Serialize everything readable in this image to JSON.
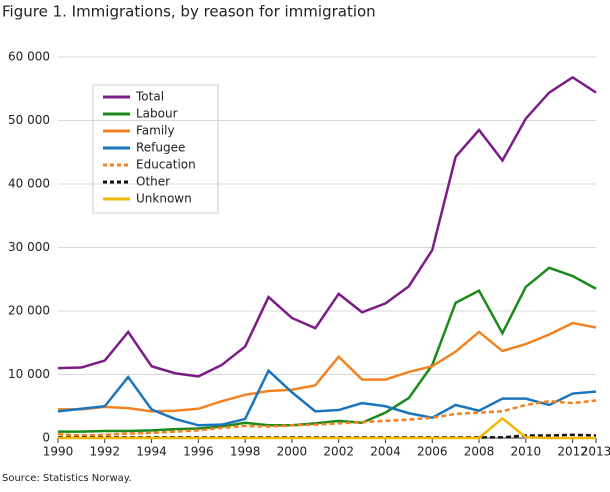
{
  "chart_data": {
    "type": "line",
    "title": "Figure 1. Immigrations, by reason for immigration",
    "source": "Source: Statistics Norway.",
    "x": [
      1990,
      1991,
      1992,
      1993,
      1994,
      1995,
      1996,
      1997,
      1998,
      1999,
      2000,
      2001,
      2002,
      2003,
      2004,
      2005,
      2006,
      2007,
      2008,
      2009,
      2010,
      2011,
      2012,
      2013
    ],
    "xlim": [
      1990,
      2013
    ],
    "xticks": [
      1990,
      1992,
      1994,
      1996,
      1998,
      2000,
      2002,
      2004,
      2006,
      2008,
      2010,
      2012,
      2013
    ],
    "ylim": [
      0,
      60000
    ],
    "yticks": [
      0,
      {
        "value": 10000,
        "label": "10 000"
      },
      {
        "value": 20000,
        "label": "20 000"
      },
      {
        "value": 30000,
        "label": "30 000"
      },
      {
        "value": 40000,
        "label": "40 000"
      },
      {
        "value": 50000,
        "label": "50 000"
      },
      {
        "value": 60000,
        "label": "60 000"
      }
    ],
    "grid": true,
    "legend": "upper left",
    "series": [
      {
        "name": "Total",
        "color": "#7b1c87",
        "dash": "solid",
        "values": [
          11000,
          11100,
          12200,
          16700,
          11300,
          10200,
          9700,
          11500,
          14400,
          22200,
          18900,
          17300,
          22700,
          19800,
          21200,
          23900,
          29600,
          44300,
          48500,
          43700,
          50300,
          54400,
          56800,
          54400
        ]
      },
      {
        "name": "Labour",
        "color": "#1a8a1a",
        "dash": "solid",
        "values": [
          1000,
          1000,
          1100,
          1100,
          1200,
          1400,
          1500,
          1800,
          2400,
          2000,
          2000,
          2300,
          2700,
          2400,
          4000,
          6300,
          11500,
          21300,
          23200,
          16500,
          23800,
          26800,
          25500,
          23500
        ]
      },
      {
        "name": "Family",
        "color": "#f28322",
        "dash": "solid",
        "values": [
          4500,
          4500,
          4900,
          4700,
          4200,
          4300,
          4600,
          5800,
          6800,
          7400,
          7600,
          8300,
          12800,
          9200,
          9200,
          10400,
          11300,
          13600,
          16700,
          13700,
          14800,
          16300,
          18100,
          17400
        ]
      },
      {
        "name": "Refugee",
        "color": "#1a75bc",
        "dash": "solid",
        "values": [
          4200,
          4600,
          5000,
          9600,
          4500,
          3000,
          2000,
          2100,
          3000,
          10600,
          7200,
          4200,
          4400,
          5500,
          5000,
          3900,
          3200,
          5200,
          4300,
          6200,
          6200,
          5200,
          7000,
          7300
        ]
      },
      {
        "name": "Education",
        "color": "#f28322",
        "dash": "dashed",
        "values": [
          600,
          400,
          500,
          700,
          800,
          1000,
          1200,
          1600,
          1900,
          1800,
          2000,
          2100,
          2300,
          2500,
          2700,
          2900,
          3200,
          3800,
          4000,
          4200,
          5200,
          5800,
          5500,
          5900
        ]
      },
      {
        "name": "Other",
        "color": "#111111",
        "dash": "dashed",
        "values": [
          100,
          100,
          100,
          100,
          100,
          100,
          100,
          100,
          100,
          100,
          100,
          100,
          100,
          100,
          100,
          100,
          100,
          100,
          100,
          100,
          400,
          400,
          500,
          400
        ]
      },
      {
        "name": "Unknown",
        "color": "#f5b800",
        "dash": "solid",
        "values": [
          0,
          0,
          0,
          0,
          0,
          0,
          0,
          0,
          0,
          0,
          0,
          0,
          0,
          0,
          0,
          0,
          0,
          0,
          0,
          3100,
          100,
          0,
          0,
          0
        ]
      }
    ]
  }
}
